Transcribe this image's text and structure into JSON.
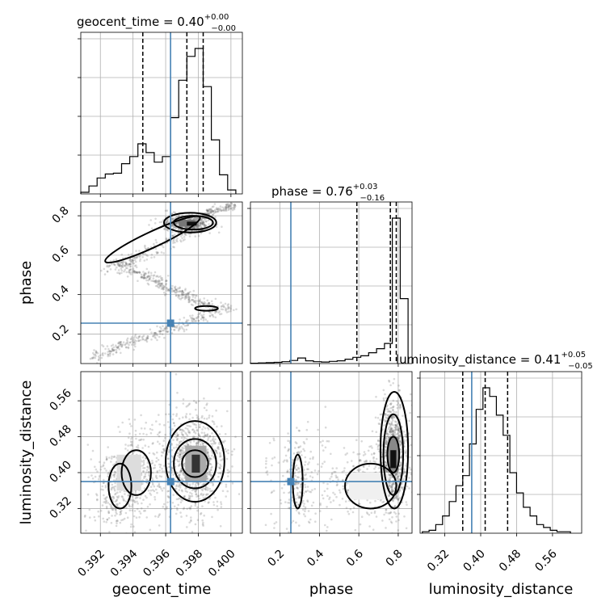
{
  "chart_data": {
    "type": "corner",
    "parameters": [
      "geocent_time",
      "phase",
      "luminosity_distance"
    ],
    "truths": {
      "geocent_time": 0.3963,
      "phase": 0.255,
      "luminosity_distance": 0.38
    },
    "ranges": {
      "geocent_time": [
        0.3908,
        0.4007
      ],
      "phase": [
        0.05,
        0.87
      ],
      "luminosity_distance": [
        0.265,
        0.625
      ]
    },
    "ticks": {
      "geocent_time": [
        "0.392",
        "0.394",
        "0.396",
        "0.398",
        "0.400"
      ],
      "phase": [
        "0.2",
        "0.4",
        "0.6",
        "0.8"
      ],
      "luminosity_distance": [
        "0.32",
        "0.40",
        "0.48",
        "0.56"
      ]
    },
    "titles": {
      "geocent_time": {
        "name": "geocent_time",
        "median": "0.40",
        "plus": "+0.00",
        "minus": "−0.00"
      },
      "phase": {
        "name": "phase",
        "median": "0.76",
        "plus": "+0.03",
        "minus": "−0.16"
      },
      "luminosity_distance": {
        "name": "luminosity_distance",
        "median": "0.41",
        "plus": "+0.05",
        "minus": "−0.05"
      }
    },
    "quantiles": {
      "geocent_time": [
        0.3946,
        0.3973,
        0.3983
      ],
      "phase": [
        0.59,
        0.76,
        0.79
      ],
      "luminosity_distance": [
        0.36,
        0.41,
        0.46
      ]
    },
    "histograms": {
      "geocent_time": {
        "edges": [
          0.3908,
          0.3913,
          0.3918,
          0.3923,
          0.3928,
          0.3933,
          0.3938,
          0.3943,
          0.3948,
          0.3953,
          0.3958,
          0.3963,
          0.3968,
          0.3973,
          0.3978,
          0.3983,
          0.3988,
          0.3993,
          0.3998,
          0.4003
        ],
        "counts": [
          2,
          10,
          20,
          25,
          26,
          38,
          47,
          63,
          52,
          40,
          47,
          96,
          143,
          173,
          183,
          135,
          68,
          24,
          5
        ]
      },
      "phase": {
        "edges": [
          0.05,
          0.09,
          0.13,
          0.17,
          0.21,
          0.25,
          0.29,
          0.33,
          0.37,
          0.41,
          0.45,
          0.49,
          0.53,
          0.57,
          0.61,
          0.65,
          0.69,
          0.73,
          0.77,
          0.81,
          0.85
        ],
        "counts": [
          1,
          2,
          3,
          4,
          6,
          10,
          18,
          9,
          6,
          5,
          7,
          9,
          14,
          20,
          25,
          35,
          48,
          65,
          470,
          210
        ]
      },
      "luminosity_distance": {
        "edges": [
          0.27,
          0.285,
          0.3,
          0.315,
          0.33,
          0.345,
          0.36,
          0.375,
          0.39,
          0.405,
          0.42,
          0.435,
          0.45,
          0.465,
          0.48,
          0.495,
          0.51,
          0.525,
          0.54,
          0.555,
          0.57,
          0.585,
          0.6
        ],
        "counts": [
          1,
          2,
          6,
          12,
          22,
          33,
          40,
          62,
          86,
          101,
          95,
          82,
          68,
          42,
          28,
          18,
          12,
          6,
          4,
          2,
          1,
          1
        ]
      }
    }
  }
}
